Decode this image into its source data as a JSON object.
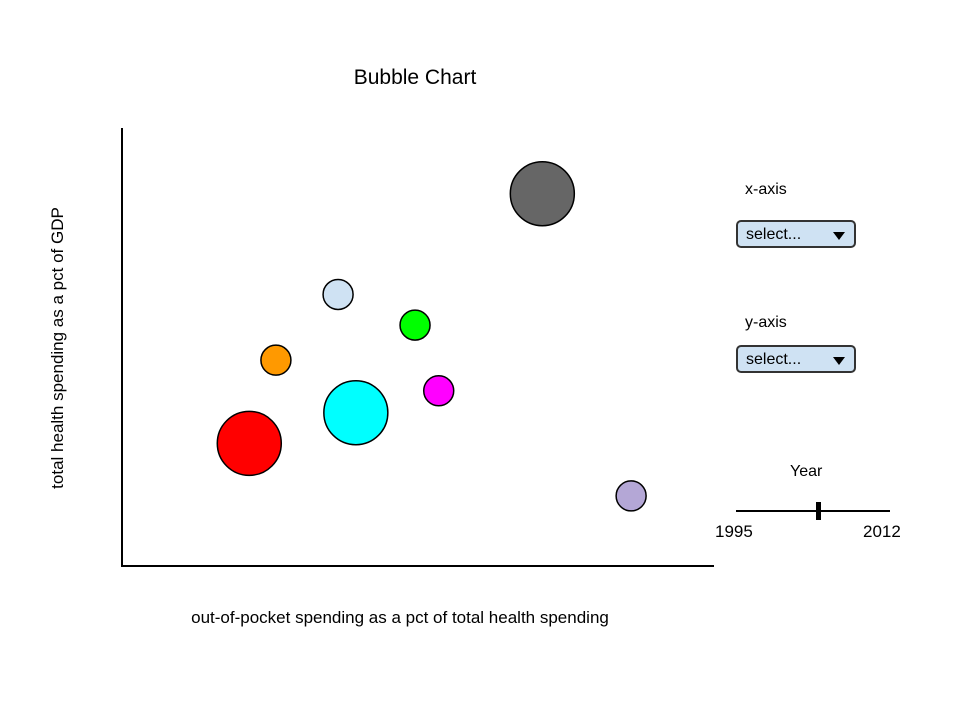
{
  "chart_data": {
    "type": "scatter",
    "title": "Bubble Chart",
    "xlabel": "out-of-pocket spending as a pct of total health spending",
    "ylabel": "total health spending as a pct of GDP",
    "xlim": [
      0,
      100
    ],
    "ylim": [
      0,
      100
    ],
    "points": [
      {
        "x": 21.5,
        "y": 28,
        "size": 32,
        "color": "#ff0000"
      },
      {
        "x": 26,
        "y": 47,
        "size": 15,
        "color": "#ff9900"
      },
      {
        "x": 36.5,
        "y": 62,
        "size": 15,
        "color": "#cfe2f3"
      },
      {
        "x": 39.5,
        "y": 35,
        "size": 32,
        "color": "#00ffff"
      },
      {
        "x": 49.5,
        "y": 55,
        "size": 15,
        "color": "#00ff00"
      },
      {
        "x": 53.5,
        "y": 40,
        "size": 15,
        "color": "#ff00ff"
      },
      {
        "x": 71,
        "y": 85,
        "size": 32,
        "color": "#666666"
      },
      {
        "x": 86,
        "y": 16,
        "size": 15,
        "color": "#b4a7d6"
      }
    ]
  },
  "controls": {
    "x_axis": {
      "label": "x-axis",
      "value": "select..."
    },
    "y_axis": {
      "label": "y-axis",
      "value": "select..."
    },
    "year": {
      "label": "Year",
      "min": "1995",
      "max": "2012",
      "value": 2004
    }
  }
}
